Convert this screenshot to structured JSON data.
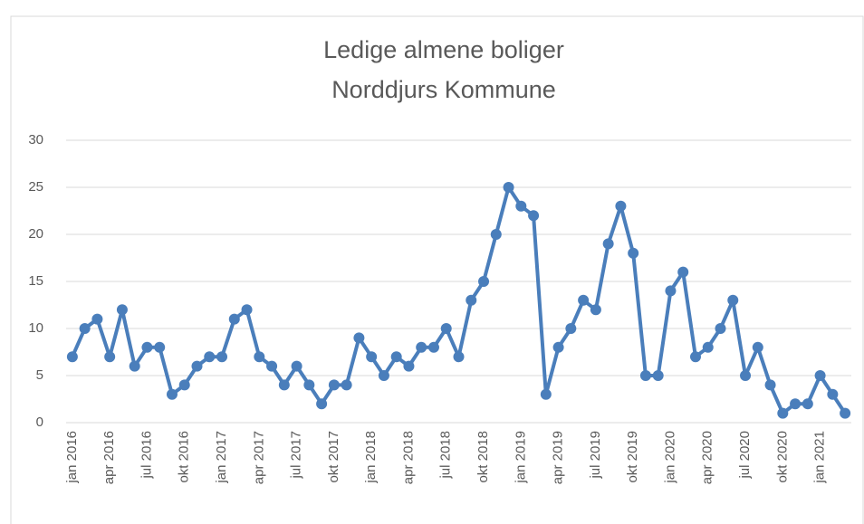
{
  "chart_data": {
    "type": "line",
    "title": "Ledige almene boliger",
    "subtitle": "Norddjurs Kommune",
    "categories": [
      "jan 2016",
      null,
      null,
      "apr 2016",
      null,
      null,
      "jul 2016",
      null,
      null,
      "okt 2016",
      null,
      null,
      "jan 2017",
      null,
      null,
      "apr 2017",
      null,
      null,
      "jul 2017",
      null,
      null,
      "okt 2017",
      null,
      null,
      "jan 2018",
      null,
      null,
      "apr 2018",
      null,
      null,
      "jul 2018",
      null,
      null,
      "okt 2018",
      null,
      null,
      "jan 2019",
      null,
      null,
      "apr 2019",
      null,
      null,
      "jul 2019",
      null,
      null,
      "okt 2019",
      null,
      null,
      "jan 2020",
      null,
      null,
      "apr 2020",
      null,
      null,
      "jul 2020",
      null,
      null,
      "okt 2020",
      null,
      null,
      "jan 2021",
      null,
      null
    ],
    "series": [
      {
        "color": "#4a7ebb",
        "values": [
          7,
          10,
          11,
          7,
          12,
          6,
          8,
          8,
          3,
          4,
          6,
          7,
          7,
          11,
          12,
          7,
          6,
          4,
          6,
          4,
          2,
          4,
          4,
          9,
          7,
          5,
          7,
          6,
          8,
          8,
          10,
          7,
          13,
          15,
          20,
          25,
          23,
          22,
          3,
          8,
          10,
          13,
          12,
          19,
          23,
          18,
          5,
          5,
          14,
          16,
          7,
          8,
          10,
          13,
          5,
          8,
          4,
          1,
          2,
          2,
          5,
          3,
          1
        ]
      }
    ],
    "ylim": [
      0,
      30
    ],
    "yticks": [
      0,
      5,
      10,
      15,
      20,
      25,
      30
    ],
    "grid": true
  }
}
